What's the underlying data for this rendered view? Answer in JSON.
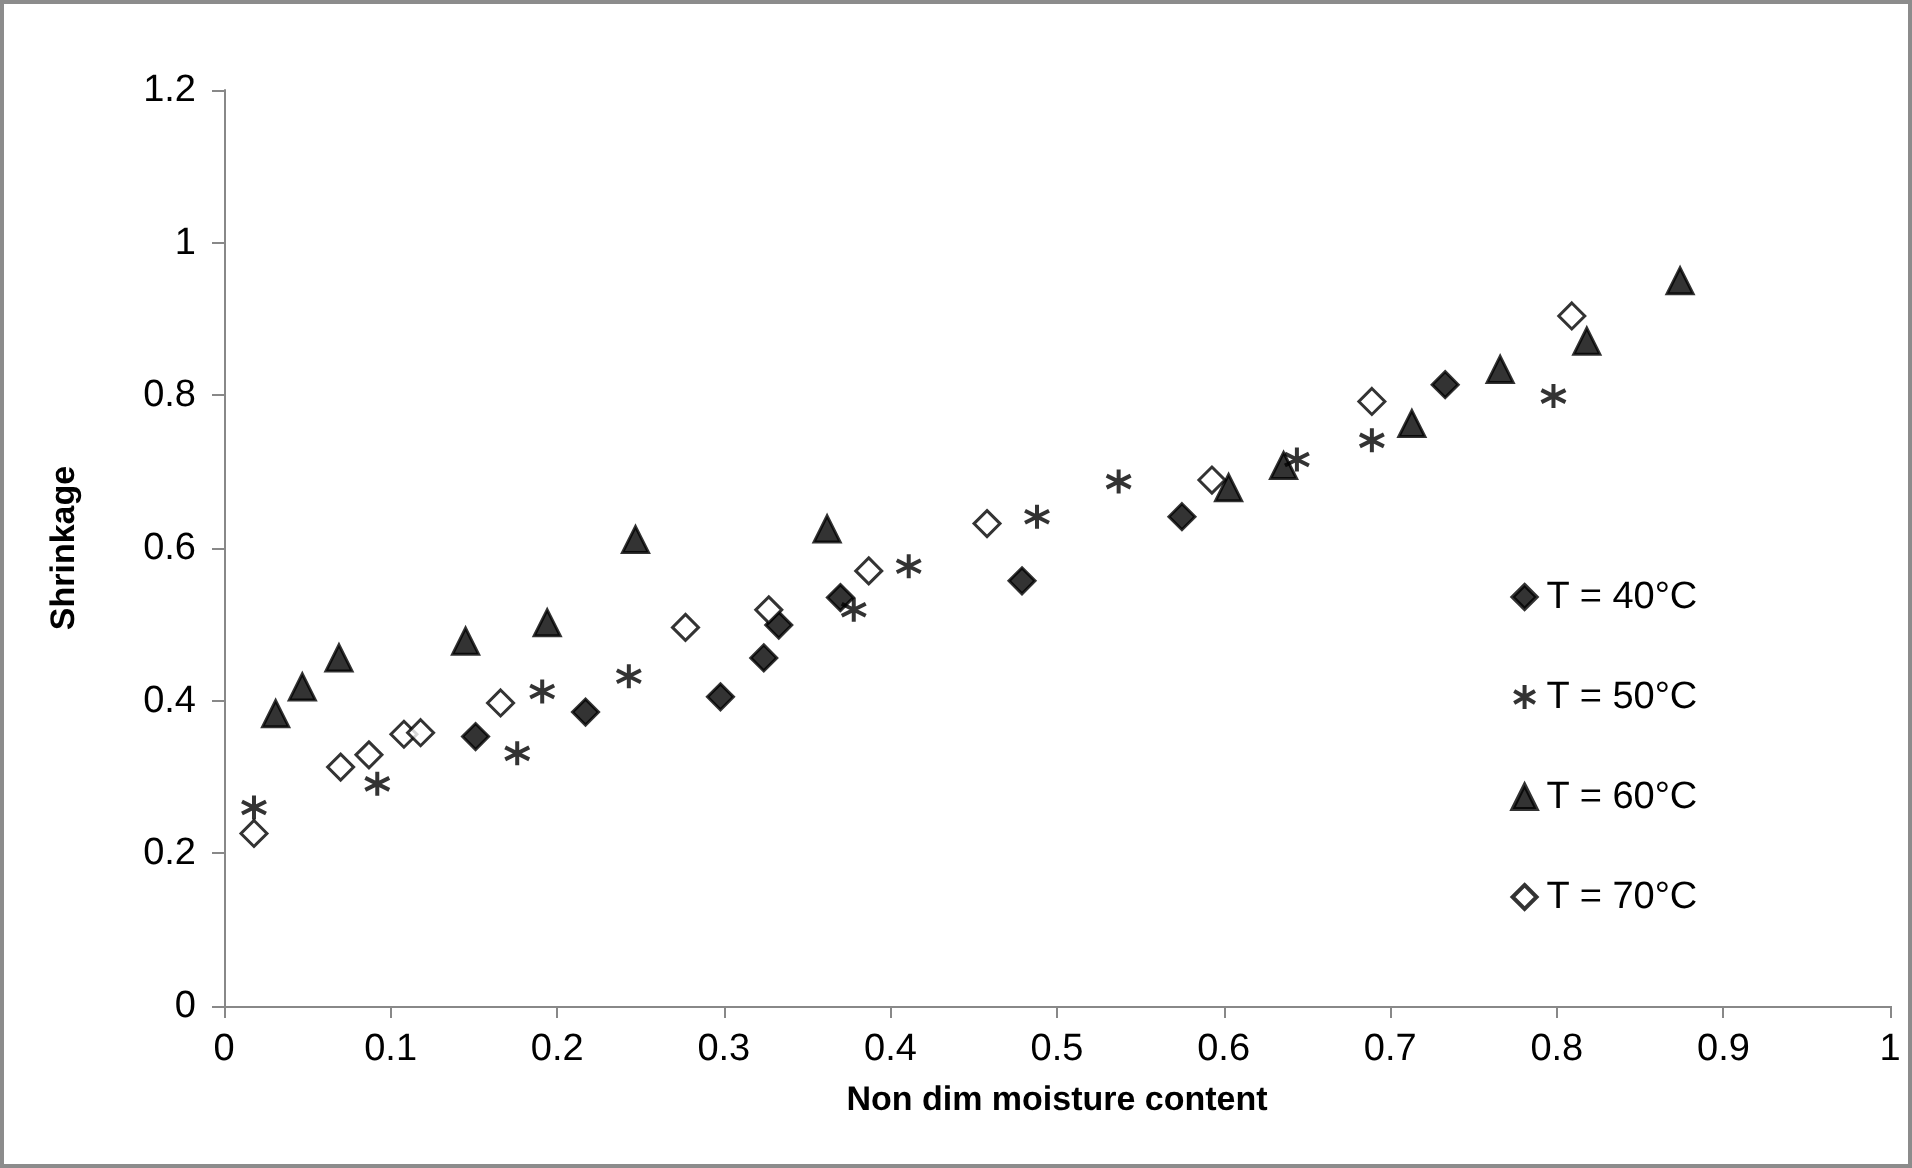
{
  "chart_data": {
    "type": "scatter",
    "xlabel": "Non dim moisture content",
    "ylabel": "Shrinkage",
    "xlim": [
      0,
      1
    ],
    "xticks": [
      0,
      0.1,
      0.2,
      0.3,
      0.4,
      0.5,
      0.6,
      0.7,
      0.8,
      0.9,
      1
    ],
    "ylim": [
      0,
      1.2
    ],
    "yticks": [
      0,
      0.2,
      0.4,
      0.6,
      0.8,
      1,
      1.2
    ],
    "grid": false,
    "legend": "right",
    "series": [
      {
        "name": "T = 40°C",
        "color": "#000000",
        "marker": "diamond",
        "x": [
          0.151,
          0.217,
          0.298,
          0.324,
          0.333,
          0.37,
          0.479,
          0.575,
          0.733
        ],
        "values": [
          0.353,
          0.385,
          0.405,
          0.456,
          0.499,
          0.535,
          0.557,
          0.641,
          0.814
        ]
      },
      {
        "name": "T = 50°C",
        "color": "#000000",
        "marker": "cross",
        "x": [
          0.018,
          0.092,
          0.176,
          0.191,
          0.243,
          0.378,
          0.411,
          0.488,
          0.537,
          0.644,
          0.689,
          0.798
        ],
        "values": [
          0.26,
          0.291,
          0.331,
          0.412,
          0.432,
          0.519,
          0.576,
          0.641,
          0.687,
          0.716,
          0.741,
          0.799
        ]
      },
      {
        "name": "T = 60°C",
        "color": "#000000",
        "marker": "triangle",
        "x": [
          0.031,
          0.047,
          0.069,
          0.145,
          0.194,
          0.247,
          0.362,
          0.603,
          0.636,
          0.713,
          0.766,
          0.818,
          0.874
        ],
        "values": [
          0.383,
          0.418,
          0.456,
          0.478,
          0.502,
          0.611,
          0.625,
          0.679,
          0.708,
          0.763,
          0.834,
          0.871,
          0.95
        ]
      },
      {
        "name": "T = 70°C",
        "color": "#ffffff",
        "marker": "diamond",
        "x": [
          0.018,
          0.07,
          0.087,
          0.108,
          0.118,
          0.166,
          0.277,
          0.327,
          0.387,
          0.458,
          0.593,
          0.689,
          0.809
        ],
        "values": [
          0.226,
          0.313,
          0.329,
          0.356,
          0.358,
          0.397,
          0.496,
          0.519,
          0.57,
          0.632,
          0.689,
          0.792,
          0.904
        ]
      }
    ]
  }
}
